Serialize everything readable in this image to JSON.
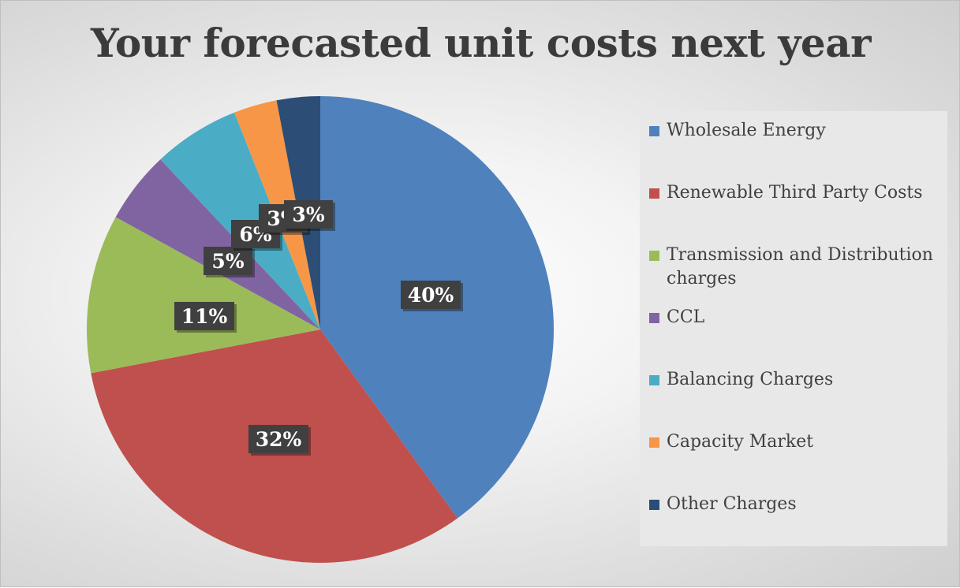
{
  "chart_data": {
    "type": "pie",
    "title": "Your forecasted unit costs next year",
    "legend_position": "right",
    "slices": [
      {
        "name": "Wholesale Energy",
        "value": 40,
        "label": "40%",
        "color": "#4f81bd"
      },
      {
        "name": "Renewable Third Party Costs",
        "value": 32,
        "label": "32%",
        "color": "#c0504d"
      },
      {
        "name": "Transmission and Distribution charges",
        "value": 11,
        "label": "11%",
        "color": "#9bbb59"
      },
      {
        "name": "CCL",
        "value": 5,
        "label": "5%",
        "color": "#8064a2"
      },
      {
        "name": "Balancing Charges",
        "value": 6,
        "label": "6%",
        "color": "#4bacc6"
      },
      {
        "name": "Capacity Market",
        "value": 3,
        "label": "3%",
        "color": "#f79646"
      },
      {
        "name": "Other Charges",
        "value": 3,
        "label": "3%",
        "color": "#2c4d75"
      }
    ]
  }
}
